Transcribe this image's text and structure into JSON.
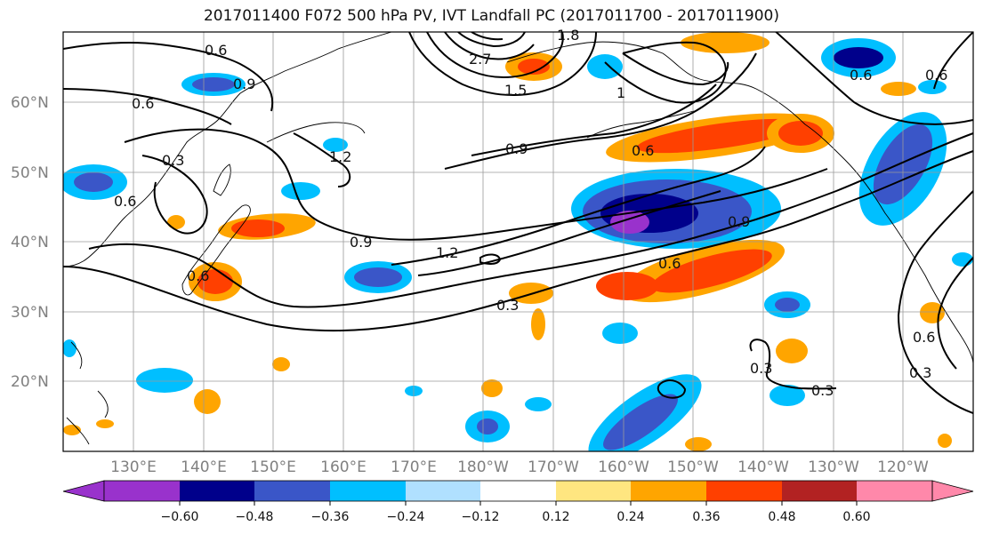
{
  "title": "2017011400 F072 500 hPa PV, IVT Landfall PC (2017011700 - 2017011900)",
  "map": {
    "lat_labels": [
      "60°N",
      "50°N",
      "40°N",
      "30°N",
      "20°N"
    ],
    "lon_labels": [
      "130°E",
      "140°E",
      "150°E",
      "160°E",
      "170°E",
      "180°W",
      "170°W",
      "160°W",
      "150°W",
      "140°W",
      "130°W",
      "120°W"
    ],
    "contour_labels": [
      "0.6",
      "0.9",
      "0.6",
      "0.3",
      "0.6",
      "1.2",
      "0.9",
      "1.2",
      "0.3",
      "2.7",
      "1.5",
      "1.8",
      "0.9",
      "0.6",
      "0.6",
      "0.9",
      "0.6",
      "0.3",
      "0.3",
      "0.6",
      "0.3",
      "0.6",
      "0.6",
      "1"
    ],
    "fill_colors": {
      "neg_060_below": "#9932CC",
      "neg_060": "#00008B",
      "neg_048": "#3A56C8",
      "neg_036": "#00BFFF",
      "neg_024": "#B0E0FF",
      "zero": "#FFFFFF",
      "pos_012": "#FFE680",
      "pos_024": "#FFA500",
      "pos_036": "#FF4000",
      "pos_048": "#B22222",
      "pos_060_above": "#FF88AA"
    }
  },
  "colorbar": {
    "ticks": [
      "−0.60",
      "−0.48",
      "−0.36",
      "−0.24",
      "−0.12",
      "0.12",
      "0.24",
      "0.36",
      "0.48",
      "0.60"
    ],
    "colors": [
      "#9932CC",
      "#00008B",
      "#3A56C8",
      "#00BFFF",
      "#B0E0FF",
      "#FFFFFF",
      "#FFE680",
      "#FFA500",
      "#FF4000",
      "#B22222",
      "#FF88AA"
    ]
  }
}
